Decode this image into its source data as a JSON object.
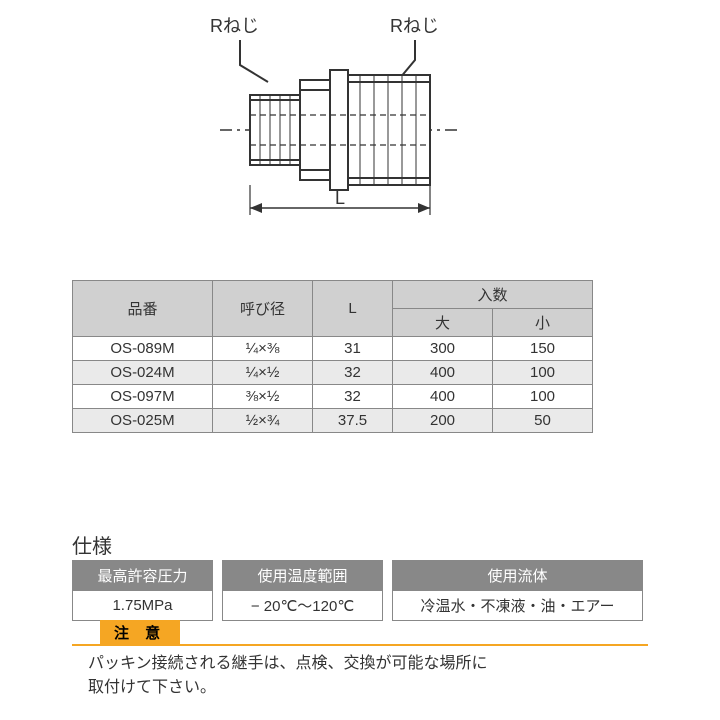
{
  "diagram": {
    "label_left": "Rねじ",
    "label_right": "Rねじ",
    "dim_label": "L",
    "stroke": "#333333",
    "fill_body": "#ffffff"
  },
  "main_table": {
    "headers": {
      "part_no": "品番",
      "size": "呼び径",
      "L": "L",
      "qty_group": "入数",
      "qty_large": "大",
      "qty_small": "小"
    },
    "rows": [
      {
        "part_no": "OS-089M",
        "size": "¼×⅜",
        "L": "31",
        "qty_large": "300",
        "qty_small": "150"
      },
      {
        "part_no": "OS-024M",
        "size": "¼×½",
        "L": "32",
        "qty_large": "400",
        "qty_small": "100"
      },
      {
        "part_no": "OS-097M",
        "size": "⅜×½",
        "L": "32",
        "qty_large": "400",
        "qty_small": "100"
      },
      {
        "part_no": "OS-025M",
        "size": "½×¾",
        "L": "37.5",
        "qty_large": "200",
        "qty_small": "50"
      }
    ],
    "header_bg": "#d0d0d0",
    "alt_row_bg": "#eaeaea",
    "border_color": "#888888"
  },
  "spec": {
    "title": "仕様",
    "headers": {
      "pressure": "最高許容圧力",
      "temp": "使用温度範囲",
      "fluid": "使用流体"
    },
    "values": {
      "pressure": "1.75MPa",
      "temp": "− 20℃〜120℃",
      "fluid": "冷温水・不凍液・油・エアー"
    },
    "header_bg": "#888888",
    "header_fg": "#ffffff"
  },
  "caution": {
    "label": "注 意",
    "text": "パッキン接続される継手は、点検、交換が可能な場所に\n取付けて下さい。",
    "accent": "#f5a623"
  }
}
